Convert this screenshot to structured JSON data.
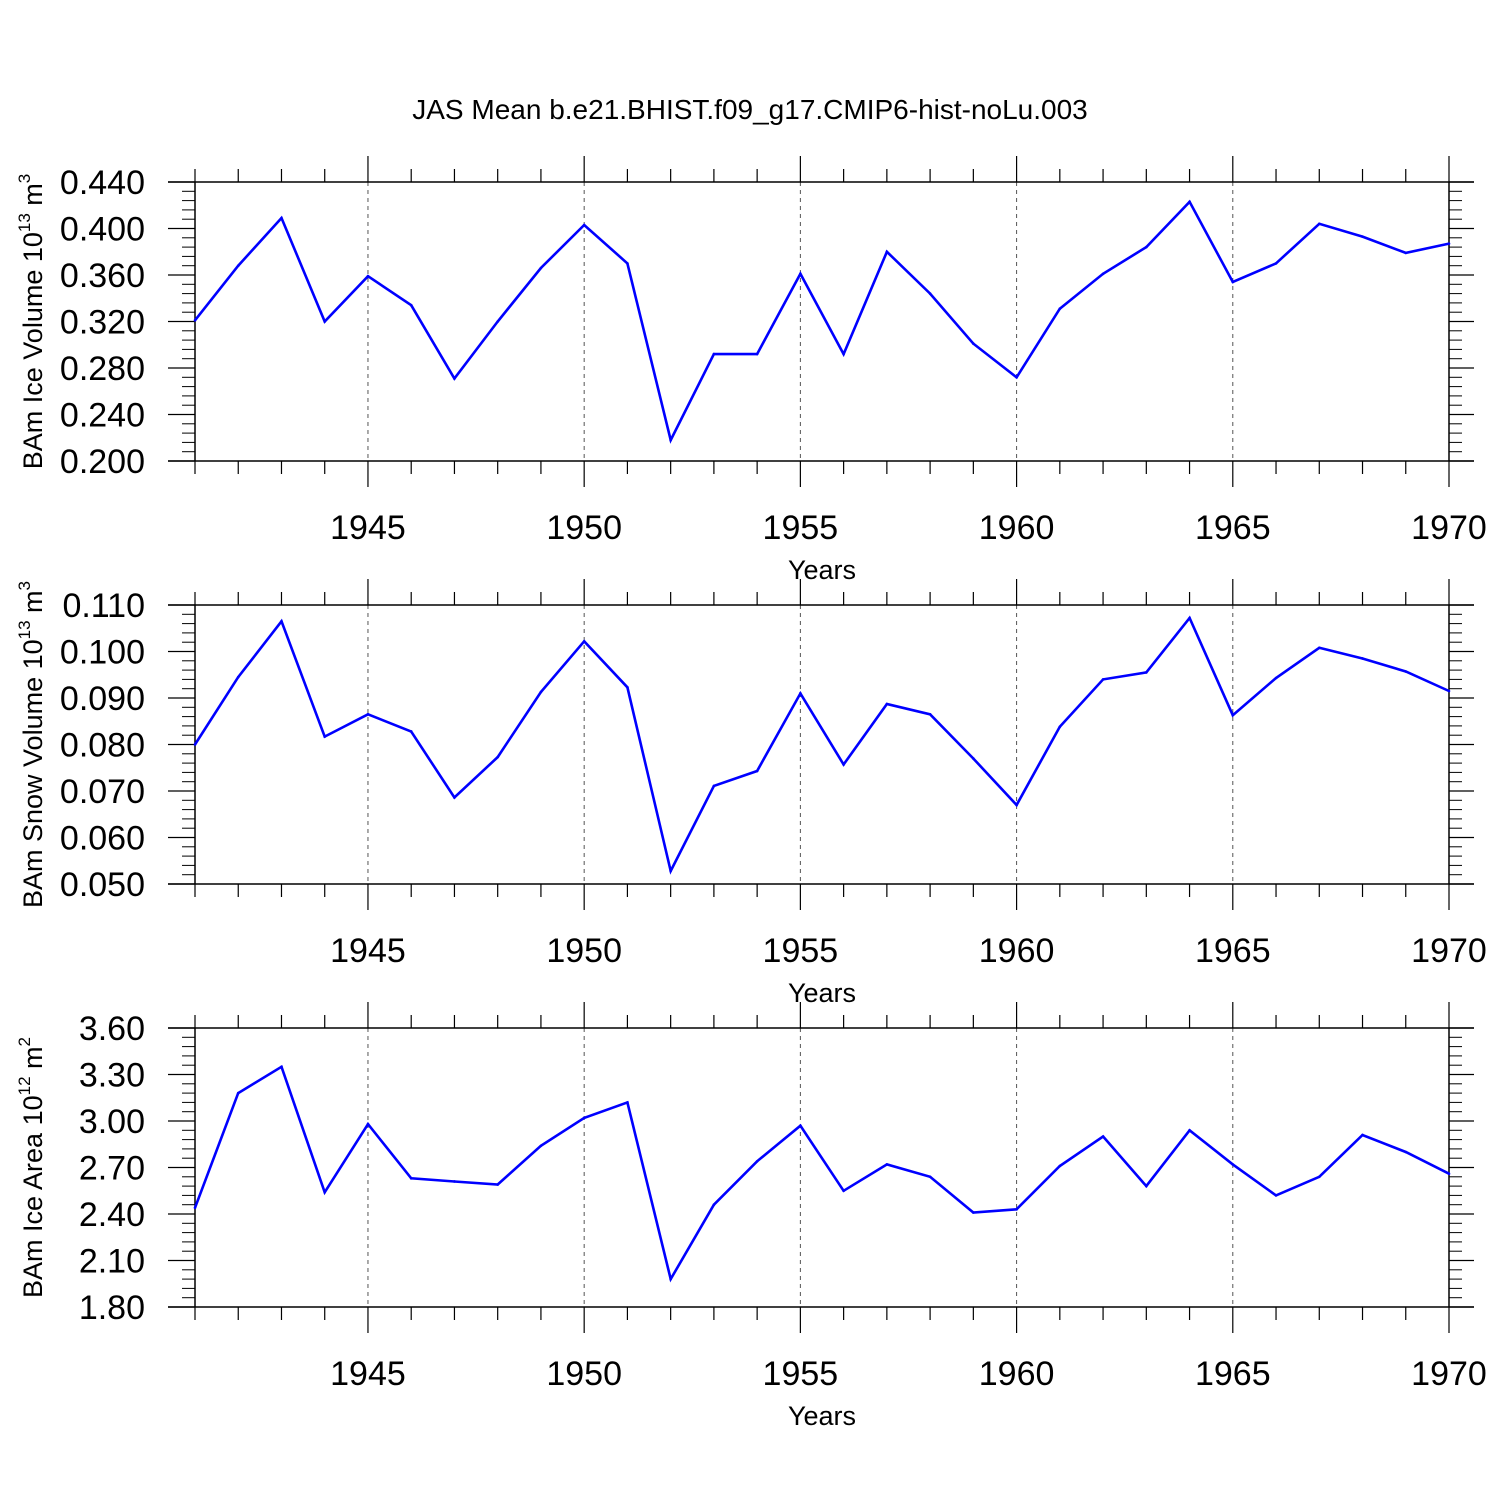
{
  "title": "JAS Mean b.e21.BHIST.f09_g17.CMIP6-hist-noLu.003",
  "colors": {
    "line": "#0000ff",
    "axes": "#000000",
    "grid": "#555555",
    "background": "#ffffff"
  },
  "chart_data": [
    {
      "type": "line",
      "ylabel": {
        "prefix": "BAm Ice Volume 10",
        "exponent": "13",
        "unit": " m",
        "unit_exponent": "3"
      },
      "xlabel": "Years",
      "xlim": [
        1941,
        1970
      ],
      "ylim": [
        0.2,
        0.44
      ],
      "yticks": [
        "0.200",
        "0.240",
        "0.280",
        "0.320",
        "0.360",
        "0.400",
        "0.440"
      ],
      "xticks": [
        "1945",
        "1950",
        "1955",
        "1960",
        "1965",
        "1970"
      ],
      "x": [
        1941,
        1942,
        1943,
        1944,
        1945,
        1946,
        1947,
        1948,
        1949,
        1950,
        1951,
        1952,
        1953,
        1954,
        1955,
        1956,
        1957,
        1958,
        1959,
        1960,
        1961,
        1962,
        1963,
        1964,
        1965,
        1966,
        1967,
        1968,
        1969,
        1970
      ],
      "series": [
        {
          "name": "BAm Ice Volume",
          "values": [
            0.321,
            0.368,
            0.409,
            0.32,
            0.359,
            0.334,
            0.271,
            0.32,
            0.366,
            0.403,
            0.37,
            0.218,
            0.292,
            0.292,
            0.361,
            0.292,
            0.38,
            0.344,
            0.301,
            0.272,
            0.331,
            0.361,
            0.384,
            0.423,
            0.354,
            0.37,
            0.404,
            0.393,
            0.379,
            0.387
          ]
        }
      ]
    },
    {
      "type": "line",
      "ylabel": {
        "prefix": "BAm Snow Volume 10",
        "exponent": "13",
        "unit": " m",
        "unit_exponent": "3"
      },
      "xlabel": "Years",
      "xlim": [
        1941,
        1970
      ],
      "ylim": [
        0.05,
        0.11
      ],
      "yticks": [
        "0.050",
        "0.060",
        "0.070",
        "0.080",
        "0.090",
        "0.100",
        "0.110"
      ],
      "xticks": [
        "1945",
        "1950",
        "1955",
        "1960",
        "1965",
        "1970"
      ],
      "x": [
        1941,
        1942,
        1943,
        1944,
        1945,
        1946,
        1947,
        1948,
        1949,
        1950,
        1951,
        1952,
        1953,
        1954,
        1955,
        1956,
        1957,
        1958,
        1959,
        1960,
        1961,
        1962,
        1963,
        1964,
        1965,
        1966,
        1967,
        1968,
        1969,
        1970
      ],
      "series": [
        {
          "name": "BAm Snow Volume",
          "values": [
            0.08,
            0.0945,
            0.1065,
            0.0817,
            0.0865,
            0.0828,
            0.0686,
            0.0773,
            0.0913,
            0.1022,
            0.0923,
            0.0528,
            0.0711,
            0.0743,
            0.091,
            0.0757,
            0.0887,
            0.0865,
            0.077,
            0.067,
            0.0838,
            0.094,
            0.0955,
            0.1072,
            0.0863,
            0.0943,
            0.1008,
            0.0985,
            0.0957,
            0.0915
          ]
        }
      ]
    },
    {
      "type": "line",
      "ylabel": {
        "prefix": "BAm Ice Area 10",
        "exponent": "12",
        "unit": " m",
        "unit_exponent": "2"
      },
      "xlabel": "Years",
      "xlim": [
        1941,
        1970
      ],
      "ylim": [
        1.8,
        3.6
      ],
      "yticks": [
        "1.80",
        "2.10",
        "2.40",
        "2.70",
        "3.00",
        "3.30",
        "3.60"
      ],
      "xticks": [
        "1945",
        "1950",
        "1955",
        "1960",
        "1965",
        "1970"
      ],
      "x": [
        1941,
        1942,
        1943,
        1944,
        1945,
        1946,
        1947,
        1948,
        1949,
        1950,
        1951,
        1952,
        1953,
        1954,
        1955,
        1956,
        1957,
        1958,
        1959,
        1960,
        1961,
        1962,
        1963,
        1964,
        1965,
        1966,
        1967,
        1968,
        1969,
        1970
      ],
      "series": [
        {
          "name": "BAm Ice Area",
          "values": [
            2.44,
            3.18,
            3.35,
            2.54,
            2.98,
            2.63,
            2.61,
            2.59,
            2.84,
            3.02,
            3.12,
            1.98,
            2.46,
            2.74,
            2.97,
            2.55,
            2.72,
            2.64,
            2.41,
            2.43,
            2.71,
            2.9,
            2.58,
            2.94,
            2.72,
            2.52,
            2.64,
            2.91,
            2.8,
            2.66
          ]
        }
      ]
    }
  ]
}
